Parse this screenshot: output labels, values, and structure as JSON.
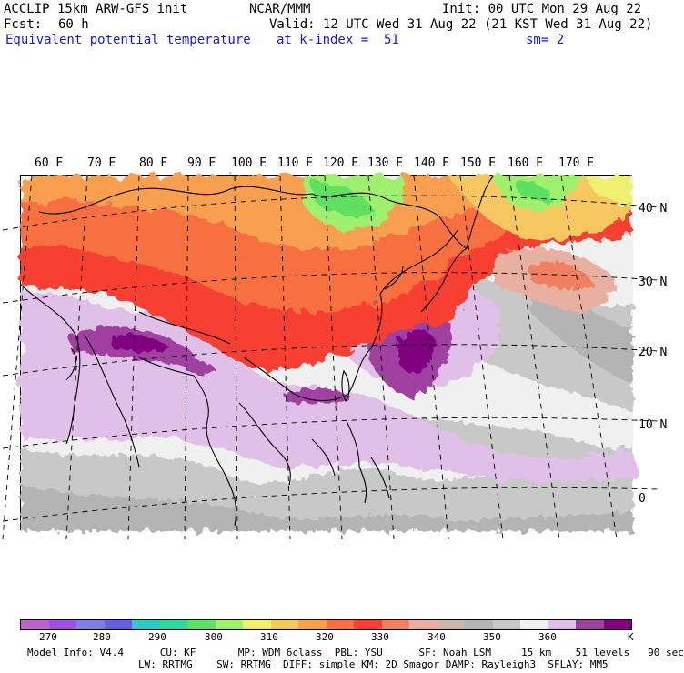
{
  "header": {
    "model": "ACCLIP 15km ARW-GFS init",
    "org": "NCAR/MMM",
    "init": "Init: 00 UTC Mon 29 Aug 22",
    "fcst_label": "Fcst:",
    "fcst_value": "60 h",
    "valid": "Valid: 12 UTC Wed 31 Aug 22 (21 KST Wed 31 Aug 22)",
    "field": "Equivalent potential temperature",
    "level": "at k-index =  51",
    "smooth": "sm= 2"
  },
  "map": {
    "lon_labels": [
      "60 E",
      "70 E",
      "80 E",
      "90 E",
      "100 E",
      "110 E",
      "120 E",
      "130 E",
      "140 E",
      "150 E",
      "160 E",
      "170 E"
    ],
    "lat_labels": [
      "40 N",
      "30 N",
      "20 N",
      "10 N",
      "0"
    ]
  },
  "colorbar": {
    "colors": [
      "#c060d0",
      "#a050e0",
      "#8080e0",
      "#6060e0",
      "#30c8c8",
      "#30d8a0",
      "#60e060",
      "#a0f070",
      "#f0f070",
      "#f8c860",
      "#f8a050",
      "#f87040",
      "#f84030",
      "#f08060",
      "#e8b0a0",
      "#c8b8b0",
      "#b4b4b4",
      "#c8c8c8",
      "#f0f0f0",
      "#e0c0e8",
      "#a040a0",
      "#800080"
    ],
    "tick_labels": [
      "270",
      "280",
      "290",
      "300",
      "310",
      "320",
      "330",
      "340",
      "350",
      "360"
    ],
    "unit": "K"
  },
  "footer": {
    "line1": "Model Info: V4.4      CU: KF       MP: WDM 6class  PBL: YSU      SF: Noah LSM     15 km    51 levels   90 sec",
    "line2": "LW: RRTMG    SW: RRTMG  DIFF: simple KM: 2D Smagor DAMP: Rayleigh3  SFLAY: MM5"
  }
}
